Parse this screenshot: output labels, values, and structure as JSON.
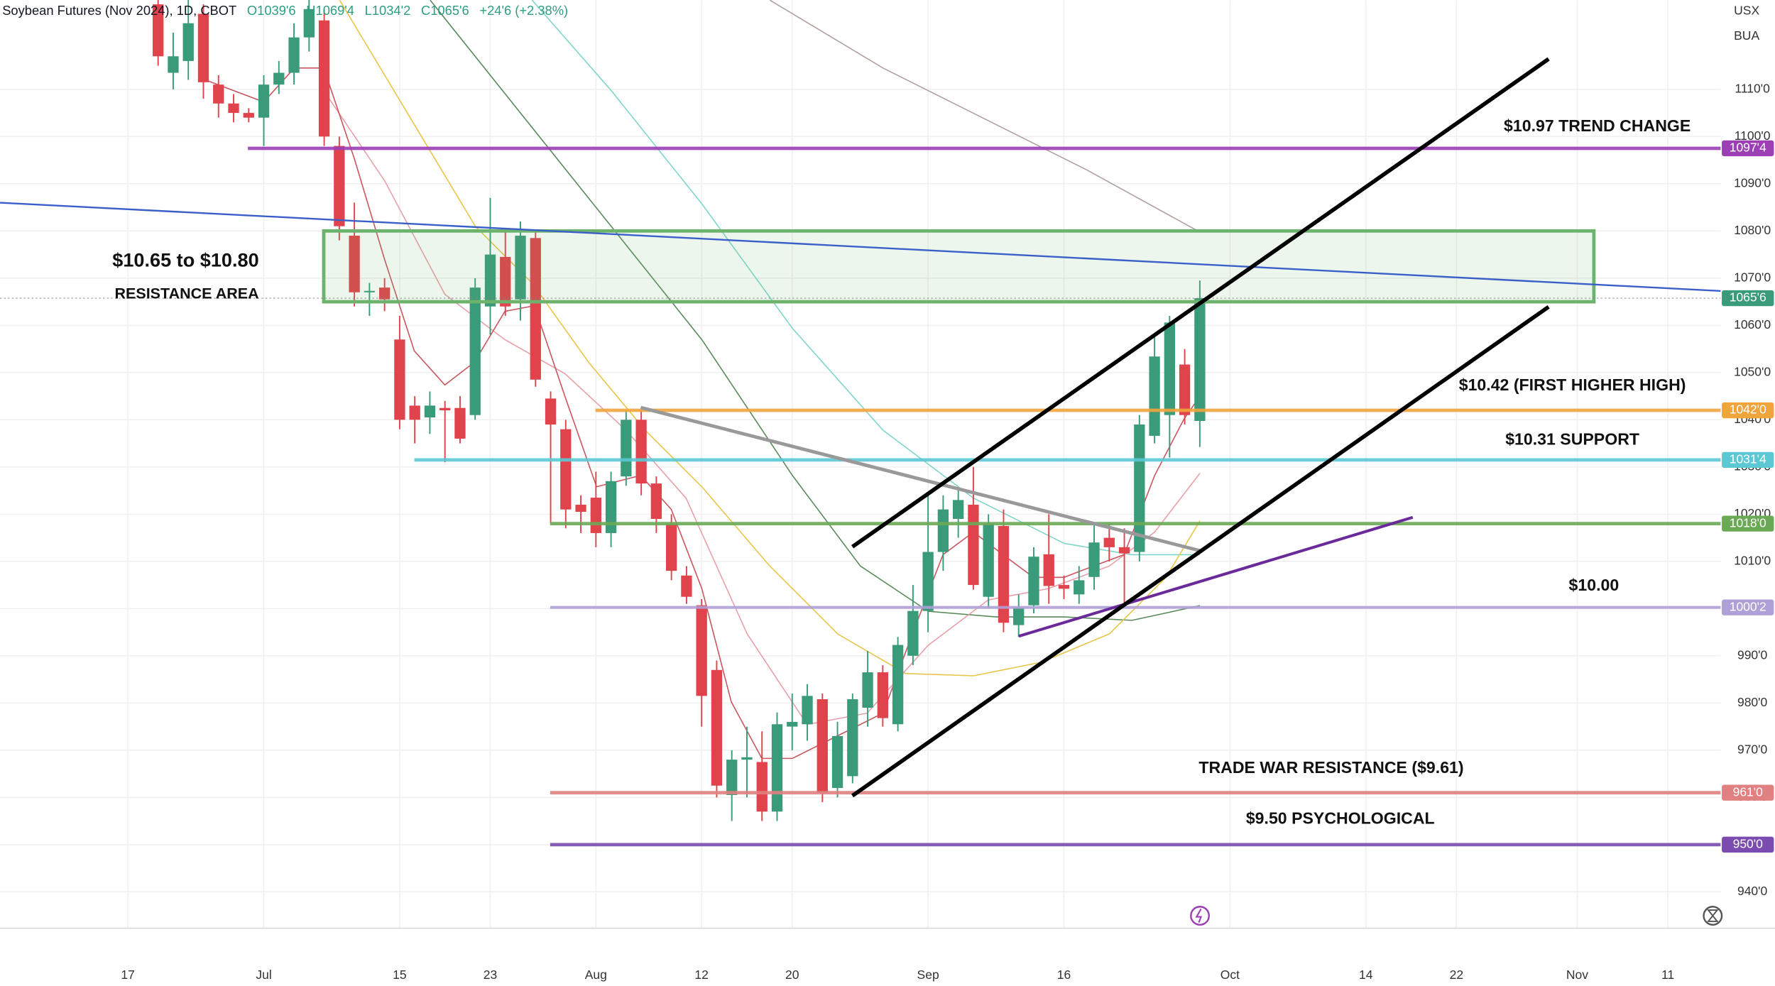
{
  "chart_data": {
    "type": "candlestick",
    "title": "Soybean Futures (Nov 2024), 1D, CBOT",
    "ohlc_labels": [
      "O1039'6",
      "H1069'4",
      "L1034'2",
      "C1065'6"
    ],
    "change": "+24'6 (+2.38%)",
    "axis_labels": [
      "USX",
      "BUA"
    ],
    "up_color": "#3a9b7a",
    "down_color": "#e0434b",
    "grid": true,
    "categories": [
      "17",
      null,
      null,
      null,
      null,
      null,
      null,
      null,
      null,
      "Jul",
      null,
      null,
      null,
      null,
      null,
      null,
      null,
      null,
      "15",
      null,
      null,
      null,
      null,
      null,
      "23",
      null,
      null,
      null,
      null,
      null,
      null,
      "Aug",
      null,
      null,
      null,
      null,
      null,
      null,
      "12",
      null,
      null,
      null,
      null,
      null,
      "20",
      null,
      null,
      null,
      null,
      null,
      null,
      null,
      null,
      "Sep",
      null,
      null,
      null,
      null,
      null,
      null,
      null,
      null,
      "16",
      null,
      null,
      null,
      null,
      null,
      null,
      null,
      null,
      null,
      null,
      "Oct",
      null,
      null,
      null,
      null,
      null,
      null,
      null,
      null,
      "14",
      null,
      null,
      null,
      null,
      null,
      "22",
      null,
      null,
      null,
      null,
      null,
      null,
      null,
      "Nov",
      null,
      null,
      null,
      null,
      null,
      "11",
      null,
      null,
      null
    ],
    "open": [
      null,
      null,
      1128,
      1113.5,
      1116,
      1126,
      1111,
      1107,
      1105,
      1104,
      1111,
      1113.5,
      1121,
      1124.6,
      1098,
      1079,
      1067,
      1068,
      1057,
      1043,
      1040.5,
      1042.5,
      1042.5,
      1041,
      1064,
      1074.5,
      1065.5,
      1078.5,
      1044.5,
      1038,
      1022,
      1023.5,
      1016,
      1028,
      1040,
      1026.5,
      1018,
      1007,
      1000.7,
      987,
      960.5,
      968,
      967.5,
      957,
      975,
      975.5,
      980.8,
      962,
      964.5,
      979,
      986.5,
      975.5,
      990,
      999.5,
      1012,
      1019,
      1022,
      1002.5,
      1017.5,
      996.5,
      1000.7,
      1011.5,
      1005,
      1003,
      1006.7,
      1015,
      1013,
      1012,
      1036.6,
      1041,
      1051.7,
      1039.75,
      null,
      null,
      null,
      null,
      null,
      null,
      null,
      null,
      null,
      null,
      null,
      null,
      null,
      null,
      null,
      null,
      null,
      null,
      null,
      null,
      null,
      null,
      null,
      null,
      null,
      null,
      null,
      null,
      null,
      null,
      null,
      null,
      null,
      null
    ],
    "high": [
      null,
      null,
      1132,
      1122,
      1130,
      1128,
      1113,
      1109,
      1106,
      1113,
      1116,
      1124,
      1130,
      1127,
      1100,
      1086,
      1069,
      1070,
      1062,
      1045,
      1046,
      1044,
      1045,
      1070,
      1087,
      1080,
      1082,
      1080,
      1046,
      1040,
      1024,
      1029,
      1029,
      1042,
      1042,
      1028,
      1020,
      1009,
      1002,
      989,
      970,
      975,
      974,
      978,
      982,
      984,
      982,
      976,
      982,
      991,
      988,
      994,
      1005,
      1024,
      1024,
      1025,
      1030,
      1020,
      1021,
      1003,
      1013,
      1020,
      1007,
      1009,
      1018,
      1018,
      1017,
      1041,
      1058,
      1062,
      1055,
      1069.5,
      null,
      null,
      null,
      null,
      null,
      null,
      null,
      null,
      null,
      null,
      null,
      null,
      null,
      null,
      null,
      null,
      null,
      null,
      null,
      null,
      null,
      null,
      null,
      null,
      null,
      null,
      null,
      null,
      null,
      null,
      null,
      null,
      null,
      null
    ],
    "low": [
      null,
      null,
      1115,
      1110,
      1112,
      1108,
      1104,
      1103,
      1103,
      1098,
      1109,
      1111,
      1118,
      1098,
      1078,
      1064,
      1062,
      1063,
      1038,
      1035,
      1037,
      1031,
      1035,
      1040,
      1058,
      1062,
      1061,
      1047,
      1018,
      1017,
      1016,
      1013,
      1013,
      1026,
      1024,
      1016,
      1006,
      1001,
      975,
      960,
      955,
      960,
      955,
      955,
      970,
      972,
      959,
      960,
      963,
      975,
      975,
      974,
      988,
      995,
      1008,
      1015,
      1004,
      1000,
      995,
      994,
      999,
      1001,
      1002,
      1001,
      1004,
      1010,
      1001,
      1010,
      1035,
      1032,
      1039,
      1034.25,
      null,
      null,
      null,
      null,
      null,
      null,
      null,
      null,
      null,
      null,
      null,
      null,
      null,
      null,
      null,
      null,
      null,
      null,
      null,
      null,
      null,
      null,
      null,
      null,
      null,
      null,
      null,
      null,
      null,
      null,
      null,
      null,
      null,
      null
    ],
    "close": [
      null,
      null,
      1117,
      1117,
      1124,
      1111.5,
      1107,
      1105,
      1104,
      1111,
      1113.5,
      1121,
      1127,
      1100,
      1081,
      1067,
      1067.3,
      1065.5,
      1040,
      1040,
      1043,
      1042,
      1036,
      1068,
      1075,
      1064,
      1079,
      1048.5,
      1039,
      1021,
      1020.5,
      1016,
      1027,
      1040,
      1026.5,
      1019,
      1008,
      1002.5,
      981.5,
      962.5,
      968,
      968.5,
      957,
      975.5,
      976,
      981.5,
      961,
      973,
      980.8,
      986.5,
      976.8,
      992.3,
      999.5,
      1012,
      1021,
      1023,
      1005,
      1018,
      997,
      1000.2,
      1011,
      1004.8,
      1004.2,
      1006,
      1014,
      1013,
      1011.7,
      1039,
      1053.4,
      1060.6,
      1041,
      1065.75,
      null,
      null,
      null,
      null,
      null,
      null,
      null,
      null,
      null,
      null,
      null,
      null,
      null,
      null,
      null,
      null,
      null,
      null,
      null,
      null,
      null,
      null,
      null,
      null,
      null,
      null,
      null,
      null,
      null,
      null,
      null,
      null,
      null,
      null
    ],
    "ylim": [
      932.3,
      1128.9
    ],
    "yticks": [
      {
        "value": 940,
        "label": "940'0"
      },
      {
        "value": 950,
        "label": "950'0"
      },
      {
        "value": 960,
        "label": "960'0"
      },
      {
        "value": 970,
        "label": "970'0"
      },
      {
        "value": 980,
        "label": "980'0"
      },
      {
        "value": 990,
        "label": "990'0"
      },
      {
        "value": 1000,
        "label": "1000'0"
      },
      {
        "value": 1010,
        "label": "1010'0"
      },
      {
        "value": 1020,
        "label": "1020'0"
      },
      {
        "value": 1030,
        "label": "1030'0"
      },
      {
        "value": 1040,
        "label": "1040'0"
      },
      {
        "value": 1050,
        "label": "1050'0"
      },
      {
        "value": 1060,
        "label": "1060'0"
      },
      {
        "value": 1070,
        "label": "1070'0"
      },
      {
        "value": 1080,
        "label": "1080'0"
      },
      {
        "value": 1090,
        "label": "1090'0"
      },
      {
        "value": 1100,
        "label": "1100'0"
      },
      {
        "value": 1110,
        "label": "1110'0"
      }
    ],
    "levels": [
      {
        "value": 1097.5,
        "label": "1097'4",
        "color": "#9c3fb5"
      },
      {
        "value": 1065.75,
        "label": "1065'6",
        "color": "#3a9b7a"
      },
      {
        "value": 1042,
        "label": "1042'0",
        "color": "#f0a53c"
      },
      {
        "value": 1031.5,
        "label": "1031'4",
        "color": "#5bc8d4"
      },
      {
        "value": 1018,
        "label": "1018'0",
        "color": "#6aaa55"
      },
      {
        "value": 1000.25,
        "label": "1000'2",
        "color": "#b0a0d8"
      },
      {
        "value": 961,
        "label": "961'0",
        "color": "#e08080"
      },
      {
        "value": 950,
        "label": "950'0",
        "color": "#7b4bb0"
      }
    ],
    "zone": [
      1065,
      1080
    ],
    "annotations": [
      "$10.97 TREND CHANGE",
      "$10.65 to $10.80",
      "RESISTANCE AREA",
      "$10.42 (FIRST HIGHER HIGH)",
      "$10.31 SUPPORT",
      "$10.00",
      "TRADE WAR RESISTANCE ($9.61)",
      "$9.50 PSYCHOLOGICAL"
    ]
  }
}
